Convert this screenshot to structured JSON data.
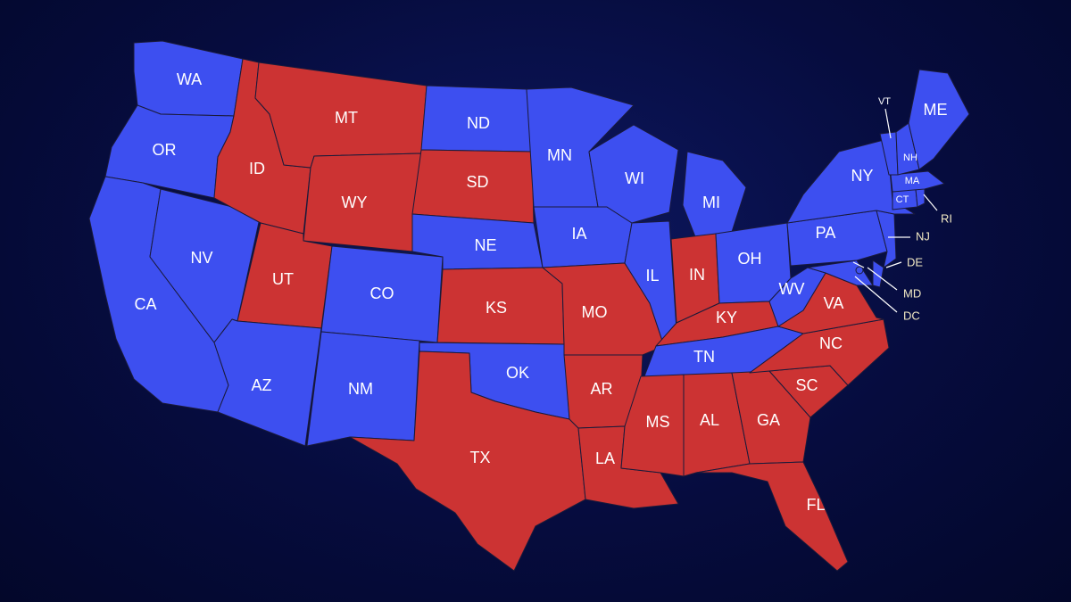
{
  "colors": {
    "blue": "#3d4ff0",
    "red": "#cc3333",
    "background": "#060c3e"
  },
  "states": [
    {
      "code": "WA",
      "party": "blue"
    },
    {
      "code": "OR",
      "party": "blue"
    },
    {
      "code": "CA",
      "party": "blue"
    },
    {
      "code": "NV",
      "party": "blue"
    },
    {
      "code": "ID",
      "party": "red"
    },
    {
      "code": "MT",
      "party": "red"
    },
    {
      "code": "WY",
      "party": "red"
    },
    {
      "code": "UT",
      "party": "red"
    },
    {
      "code": "AZ",
      "party": "blue"
    },
    {
      "code": "CO",
      "party": "blue"
    },
    {
      "code": "NM",
      "party": "blue"
    },
    {
      "code": "ND",
      "party": "blue"
    },
    {
      "code": "SD",
      "party": "red"
    },
    {
      "code": "NE",
      "party": "blue"
    },
    {
      "code": "KS",
      "party": "red"
    },
    {
      "code": "OK",
      "party": "blue"
    },
    {
      "code": "TX",
      "party": "red"
    },
    {
      "code": "MN",
      "party": "blue"
    },
    {
      "code": "IA",
      "party": "blue"
    },
    {
      "code": "MO",
      "party": "red"
    },
    {
      "code": "AR",
      "party": "red"
    },
    {
      "code": "LA",
      "party": "red"
    },
    {
      "code": "WI",
      "party": "blue"
    },
    {
      "code": "IL",
      "party": "blue"
    },
    {
      "code": "MI",
      "party": "blue"
    },
    {
      "code": "IN",
      "party": "red"
    },
    {
      "code": "OH",
      "party": "blue"
    },
    {
      "code": "KY",
      "party": "red"
    },
    {
      "code": "TN",
      "party": "blue"
    },
    {
      "code": "MS",
      "party": "red"
    },
    {
      "code": "AL",
      "party": "red"
    },
    {
      "code": "GA",
      "party": "red"
    },
    {
      "code": "FL",
      "party": "red"
    },
    {
      "code": "SC",
      "party": "red"
    },
    {
      "code": "NC",
      "party": "red"
    },
    {
      "code": "VA",
      "party": "red"
    },
    {
      "code": "WV",
      "party": "blue"
    },
    {
      "code": "PA",
      "party": "blue"
    },
    {
      "code": "NY",
      "party": "blue"
    },
    {
      "code": "VT",
      "party": "blue"
    },
    {
      "code": "NH",
      "party": "blue"
    },
    {
      "code": "ME",
      "party": "blue"
    },
    {
      "code": "MA",
      "party": "blue"
    },
    {
      "code": "CT",
      "party": "blue"
    },
    {
      "code": "RI",
      "party": "blue"
    },
    {
      "code": "NJ",
      "party": "blue"
    },
    {
      "code": "DE",
      "party": "blue"
    },
    {
      "code": "MD",
      "party": "blue"
    },
    {
      "code": "DC",
      "party": "blue"
    }
  ]
}
